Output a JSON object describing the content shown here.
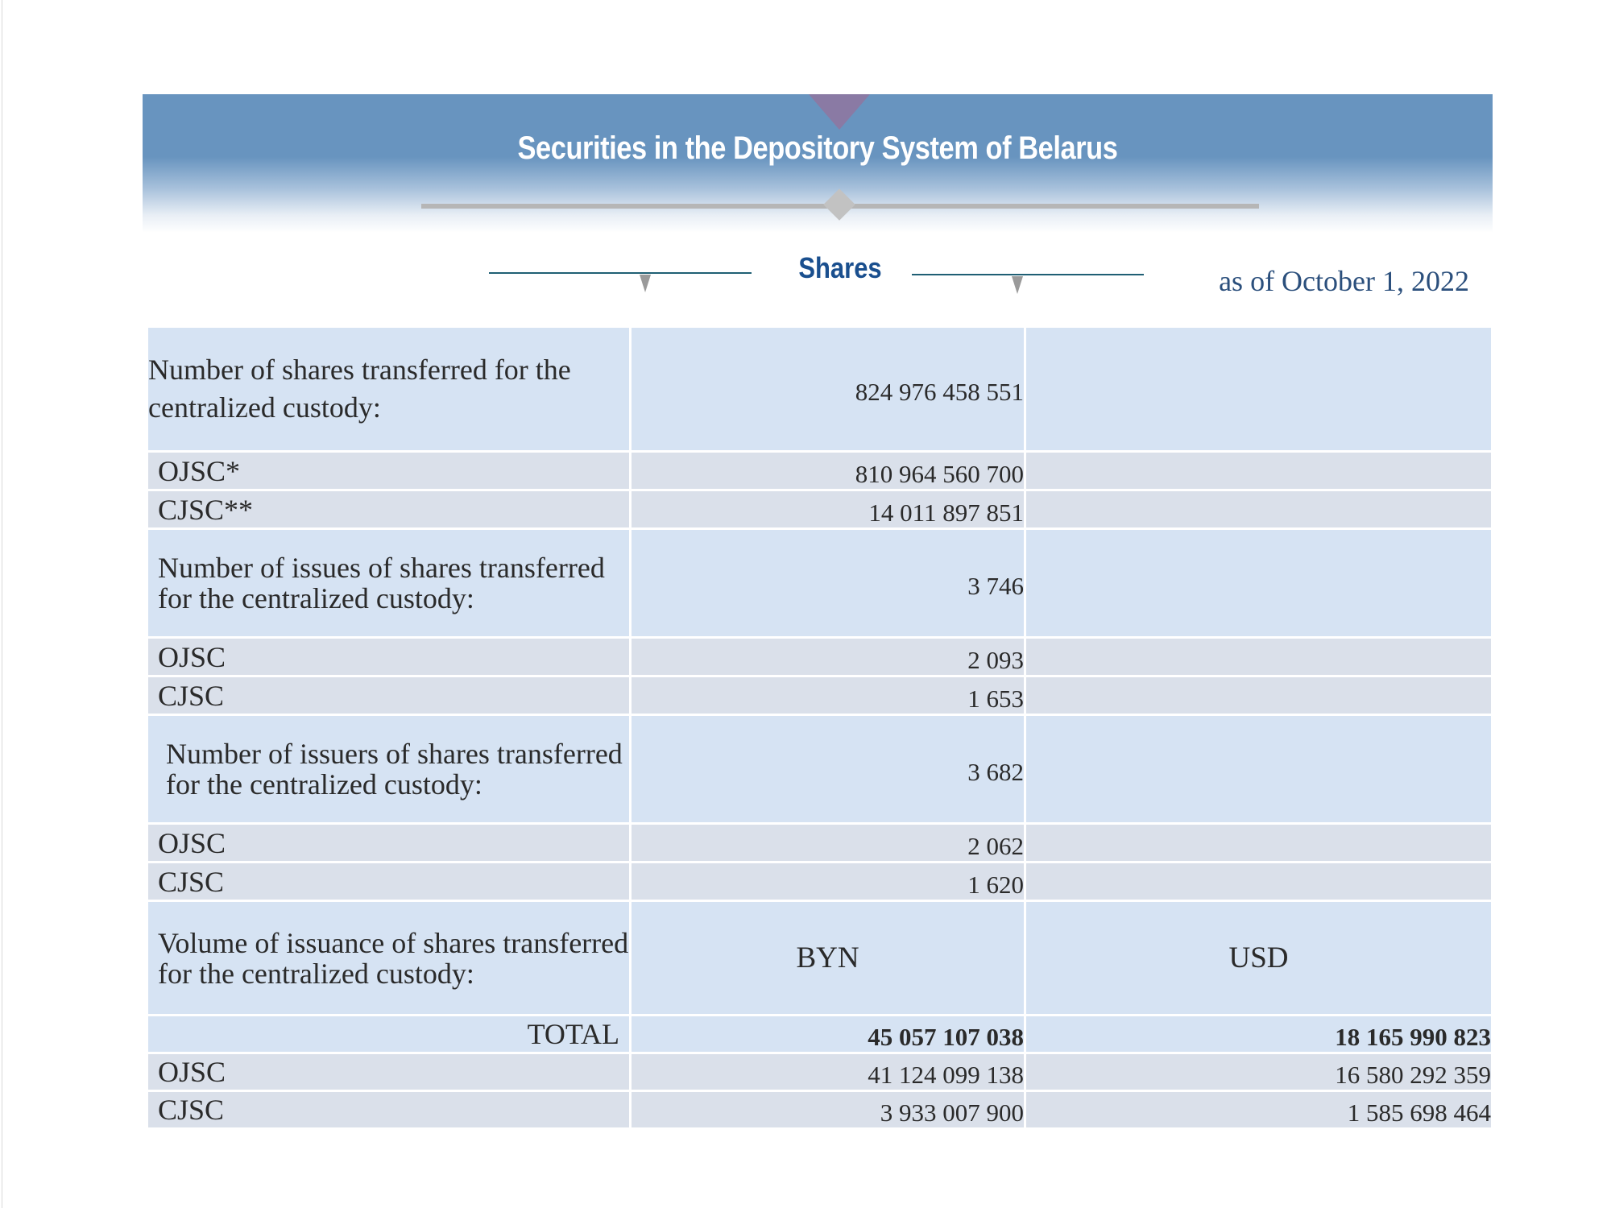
{
  "banner": {
    "title": "Securities in the Depository System of Belarus"
  },
  "section": {
    "title": "Shares",
    "date": "as of October 1, 2022"
  },
  "table": {
    "rows": [
      {
        "label": "Number of shares transferred for the centralized custody:",
        "col1": "824 976 458 551",
        "col2": ""
      },
      {
        "label": "OJSC*",
        "col1": "810 964 560 700",
        "col2": ""
      },
      {
        "label": "CJSC**",
        "col1": "14 011 897 851",
        "col2": ""
      },
      {
        "label": "Number of issues of shares transferred for the centralized custody:",
        "col1": "3 746",
        "col2": ""
      },
      {
        "label": "OJSC",
        "col1": "2 093",
        "col2": ""
      },
      {
        "label": "CJSC",
        "col1": "1 653",
        "col2": ""
      },
      {
        "label": "Number of issuers of shares transferred for the centralized custody:",
        "col1": "3 682",
        "col2": ""
      },
      {
        "label": "OJSC",
        "col1": "2 062",
        "col2": ""
      },
      {
        "label": "CJSC",
        "col1": "1 620",
        "col2": ""
      },
      {
        "label": "Volume of issuance of shares transferred for the centralized custody:",
        "col1": "BYN",
        "col2": "USD"
      },
      {
        "label": "TOTAL",
        "col1": "45 057 107 038",
        "col2": "18 165 990 823"
      },
      {
        "label": "OJSC",
        "col1": "41 124 099 138",
        "col2": "16 580 292 359"
      },
      {
        "label": "CJSC",
        "col1": "3 933 007 900",
        "col2": "1 585 698 464"
      }
    ]
  }
}
